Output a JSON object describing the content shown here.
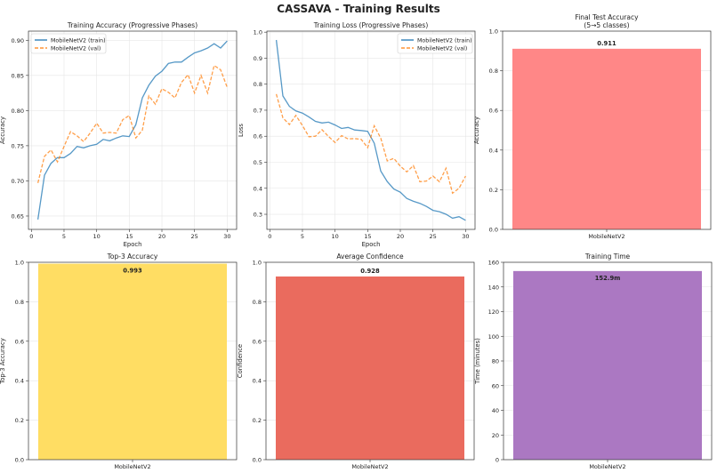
{
  "figure_title": "CASSAVA - Training Results",
  "chart_data": [
    {
      "type": "line",
      "title": "Training Accuracy (Progressive Phases)",
      "xlabel": "Epoch",
      "ylabel": "Accuracy",
      "xlim": [
        -0.45,
        31.45
      ],
      "ylim": [
        0.631,
        0.913
      ],
      "xticks": [
        0,
        5,
        10,
        15,
        20,
        25,
        30
      ],
      "yticks": [
        0.65,
        0.7,
        0.75,
        0.8,
        0.85,
        0.9
      ],
      "ytick_format": 2,
      "grid": true,
      "legend_position": "top-left",
      "x": [
        1,
        2,
        3,
        4,
        5,
        6,
        7,
        8,
        9,
        10,
        11,
        12,
        13,
        14,
        15,
        16,
        17,
        18,
        19,
        20,
        21,
        22,
        23,
        24,
        25,
        26,
        27,
        28,
        29,
        30
      ],
      "series": [
        {
          "name": "MobileNetV2 (train)",
          "color": "#1f77b4",
          "style": "solid",
          "values": [
            0.645,
            0.708,
            0.725,
            0.733,
            0.733,
            0.739,
            0.749,
            0.747,
            0.75,
            0.752,
            0.759,
            0.757,
            0.761,
            0.764,
            0.763,
            0.78,
            0.818,
            0.836,
            0.849,
            0.856,
            0.867,
            0.869,
            0.869,
            0.876,
            0.882,
            0.885,
            0.889,
            0.895,
            0.889,
            0.899
          ]
        },
        {
          "name": "MobileNetV2 (val)",
          "color": "#ff7f0e",
          "style": "dashed",
          "values": [
            0.697,
            0.735,
            0.744,
            0.727,
            0.749,
            0.77,
            0.764,
            0.756,
            0.768,
            0.782,
            0.768,
            0.769,
            0.768,
            0.787,
            0.793,
            0.761,
            0.772,
            0.821,
            0.809,
            0.831,
            0.826,
            0.818,
            0.84,
            0.851,
            0.825,
            0.85,
            0.825,
            0.864,
            0.858,
            0.833
          ]
        }
      ]
    },
    {
      "type": "line",
      "title": "Training Loss (Progressive Phases)",
      "xlabel": "Epoch",
      "ylabel": "Loss",
      "xlim": [
        -0.45,
        31.45
      ],
      "ylim": [
        0.242,
        1.004
      ],
      "xticks": [
        0,
        5,
        10,
        15,
        20,
        25,
        30
      ],
      "yticks": [
        0.3,
        0.4,
        0.5,
        0.6,
        0.7,
        0.8,
        0.9,
        1.0
      ],
      "ytick_format": 1,
      "grid": true,
      "legend_position": "top-right",
      "x": [
        1,
        2,
        3,
        4,
        5,
        6,
        7,
        8,
        9,
        10,
        11,
        12,
        13,
        14,
        15,
        16,
        17,
        18,
        19,
        20,
        21,
        22,
        23,
        24,
        25,
        26,
        27,
        28,
        29,
        30
      ],
      "series": [
        {
          "name": "MobileNetV2 (train)",
          "color": "#1f77b4",
          "style": "solid",
          "values": [
            0.97,
            0.755,
            0.715,
            0.697,
            0.689,
            0.674,
            0.657,
            0.651,
            0.654,
            0.643,
            0.63,
            0.634,
            0.624,
            0.622,
            0.619,
            0.573,
            0.466,
            0.426,
            0.397,
            0.385,
            0.361,
            0.35,
            0.342,
            0.33,
            0.315,
            0.31,
            0.3,
            0.285,
            0.291,
            0.277
          ]
        },
        {
          "name": "MobileNetV2 (val)",
          "color": "#ff7f0e",
          "style": "dashed",
          "values": [
            0.762,
            0.671,
            0.645,
            0.68,
            0.641,
            0.598,
            0.6,
            0.625,
            0.599,
            0.576,
            0.602,
            0.59,
            0.591,
            0.588,
            0.556,
            0.64,
            0.593,
            0.505,
            0.515,
            0.485,
            0.463,
            0.487,
            0.425,
            0.428,
            0.447,
            0.425,
            0.477,
            0.381,
            0.4,
            0.447
          ]
        }
      ]
    },
    {
      "type": "bar",
      "title": "Final Test Accuracy\n(5→5 classes)",
      "ylabel": "Accuracy",
      "categories": [
        "MobileNetV2"
      ],
      "values": [
        0.911
      ],
      "value_labels": [
        "0.911"
      ],
      "ylim": [
        0,
        1.0
      ],
      "yticks": [
        0.0,
        0.2,
        0.4,
        0.6,
        0.8,
        1.0
      ],
      "ytick_format": 1,
      "color": "#ff8787",
      "grid": true
    },
    {
      "type": "bar",
      "title": "Top-3 Accuracy",
      "ylabel": "Top-3 Accuracy",
      "categories": [
        "MobileNetV2"
      ],
      "values": [
        0.993
      ],
      "value_labels": [
        "0.993"
      ],
      "ylim": [
        0,
        1.0
      ],
      "yticks": [
        0.0,
        0.2,
        0.4,
        0.6,
        0.8,
        1.0
      ],
      "ytick_format": 1,
      "color": "#ffdd63",
      "grid": true
    },
    {
      "type": "bar",
      "title": "Average Confidence",
      "ylabel": "Confidence",
      "categories": [
        "MobileNetV2"
      ],
      "values": [
        0.928
      ],
      "value_labels": [
        "0.928"
      ],
      "ylim": [
        0,
        1.0
      ],
      "yticks": [
        0.0,
        0.2,
        0.4,
        0.6,
        0.8,
        1.0
      ],
      "ytick_format": 1,
      "color": "#ea6b5e",
      "grid": true
    },
    {
      "type": "bar",
      "title": "Training Time",
      "ylabel": "Time (minutes)",
      "categories": [
        "MobileNetV2"
      ],
      "values": [
        152.9
      ],
      "value_labels": [
        "152.9m"
      ],
      "ylim": [
        0,
        160
      ],
      "yticks": [
        0,
        20,
        40,
        60,
        80,
        100,
        120,
        140,
        160
      ],
      "ytick_format": 0,
      "color": "#ab78c2",
      "grid": true
    }
  ]
}
